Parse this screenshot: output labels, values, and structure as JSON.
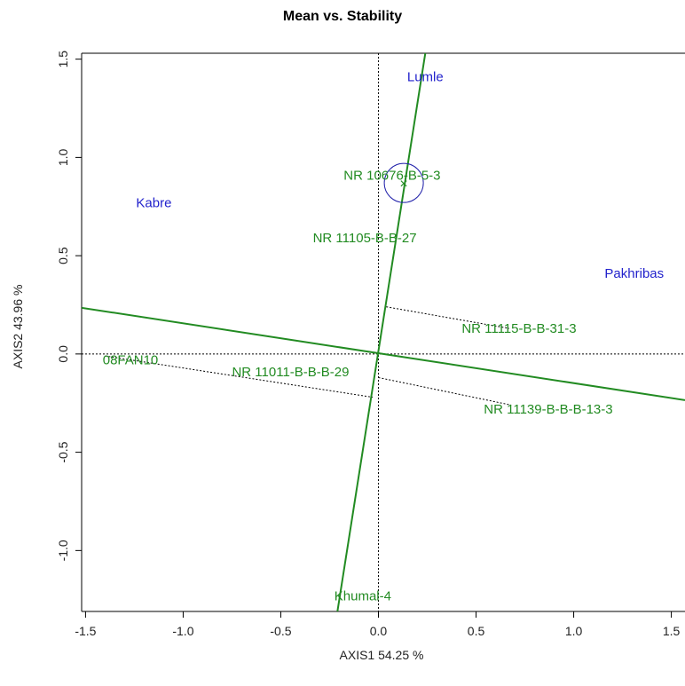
{
  "chart_data": {
    "type": "scatter",
    "title": "Mean vs. Stability",
    "xlabel": "AXIS1 54.25 %",
    "ylabel": "AXIS2 43.96 %",
    "xlim": [
      -1.52,
      1.57
    ],
    "ylim": [
      -1.31,
      1.53
    ],
    "xticks": [
      -1.5,
      -1.0,
      -0.5,
      0.0,
      0.5,
      1.0,
      1.5
    ],
    "xtick_labels": [
      "-1.5",
      "-1.0",
      "-0.5",
      "0.0",
      "0.5",
      "1.0",
      "1.5"
    ],
    "yticks": [
      -1.0,
      -0.5,
      0.0,
      0.5,
      1.0,
      1.5
    ],
    "ytick_labels": [
      "-1.0",
      "-0.5",
      "0.0",
      "0.5",
      "1.0",
      "1.5"
    ],
    "grid": false,
    "environments": [
      {
        "label": "Lumle",
        "x": 0.24,
        "y": 1.41
      },
      {
        "label": "Kabre",
        "x": -1.15,
        "y": 0.77
      },
      {
        "label": "Pakhribas",
        "x": 1.31,
        "y": 0.41
      }
    ],
    "genotypes": [
      {
        "label": "NR 10676-B-5-3",
        "x": 0.07,
        "y": 0.91
      },
      {
        "label": "NR 11105-B-B-27",
        "x": -0.07,
        "y": 0.59
      },
      {
        "label": "NR 11115-B-B-31-3",
        "x": 0.72,
        "y": 0.13
      },
      {
        "label": "08FAN10",
        "x": -1.27,
        "y": -0.03
      },
      {
        "label": "NR 11011-B-B-B-29",
        "x": -0.45,
        "y": -0.09
      },
      {
        "label": "NR 11139-B-B-B-13-3",
        "x": 0.87,
        "y": -0.28
      },
      {
        "label": "Khumal-4",
        "x": -0.08,
        "y": -1.23
      }
    ],
    "average_environment_axis": {
      "from": [
        -1.52,
        0.235
      ],
      "to": [
        1.57,
        -0.235
      ]
    },
    "ordinate_line": {
      "from": [
        -0.21,
        -1.31
      ],
      "to": [
        0.24,
        1.53
      ]
    },
    "projection_lines": [
      {
        "from": [
          -1.4,
          -0.01
        ],
        "to": [
          -0.03,
          -0.22
        ]
      },
      {
        "from": [
          0.04,
          0.24
        ],
        "to": [
          0.67,
          0.13
        ]
      },
      {
        "from": [
          0.0,
          -0.12
        ],
        "to": [
          0.68,
          -0.26
        ]
      }
    ],
    "average_environment_marker": {
      "label": "×",
      "x": 0.13,
      "y": 0.87,
      "circle_radius": 0.1
    },
    "colors": {
      "genotype": "#228B22",
      "environment": "#2222CC",
      "axis": "#228B22",
      "circle": "#2222AA"
    }
  }
}
